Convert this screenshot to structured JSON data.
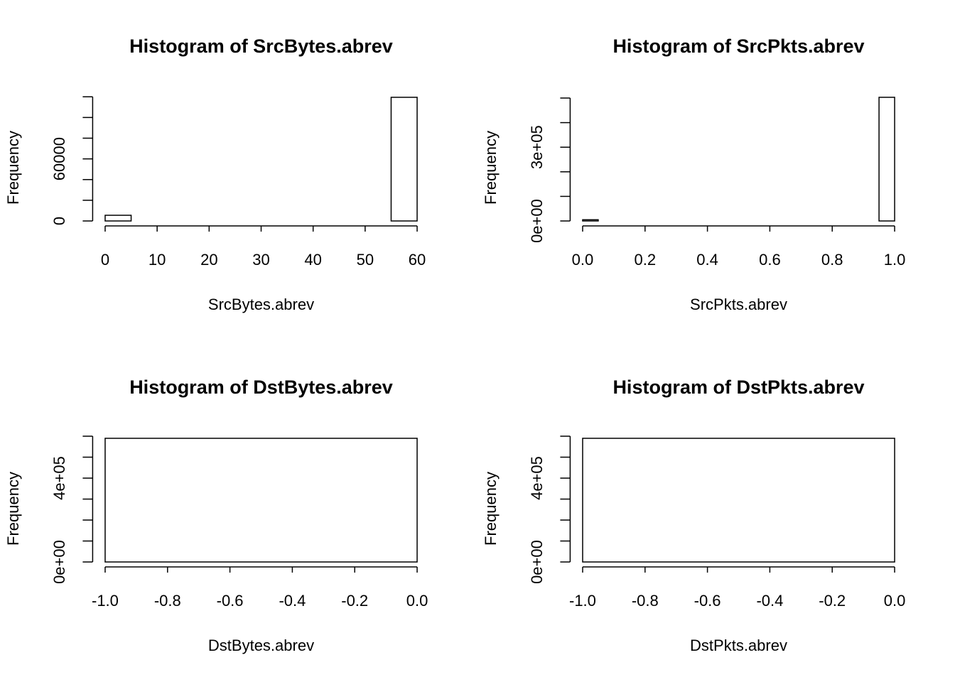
{
  "chart_data": [
    {
      "type": "histogram",
      "title": "Histogram of SrcBytes.abrev",
      "x_label": "SrcBytes.abrev",
      "y_label": "Frequency",
      "bins": [
        0,
        5,
        10,
        15,
        20,
        25,
        30,
        35,
        40,
        45,
        50,
        55,
        60
      ],
      "counts": [
        5500,
        0,
        0,
        0,
        0,
        0,
        0,
        0,
        0,
        0,
        0,
        119500
      ],
      "xlim": [
        -2.4,
        62.4
      ],
      "xticks": [
        0,
        10,
        20,
        30,
        40,
        50,
        60
      ],
      "ylim": [
        -4780,
        124280
      ],
      "yticks": [
        0,
        {
          "value": 20000,
          "label": null
        },
        {
          "value": 40000,
          "label": null
        },
        60000,
        {
          "value": 80000,
          "label": null
        },
        {
          "value": 100000,
          "label": null
        },
        {
          "value": 120000,
          "label": null
        }
      ],
      "color": "#ffffff",
      "edge_color": "#000000"
    },
    {
      "type": "histogram",
      "title": "Histogram of SrcPkts.abrev",
      "x_label": "SrcPkts.abrev",
      "y_label": "Frequency",
      "bins": [
        0,
        0.05,
        0.1,
        0.15,
        0.2,
        0.25,
        0.3,
        0.35,
        0.4,
        0.45,
        0.5,
        0.55,
        0.6,
        0.65,
        0.7,
        0.75,
        0.8,
        0.85,
        0.9,
        0.95,
        1
      ],
      "counts": [
        5000,
        0,
        0,
        0,
        0,
        0,
        0,
        0,
        0,
        0,
        0,
        0,
        0,
        0,
        0,
        0,
        0,
        0,
        0,
        503000
      ],
      "xlim": [
        -0.04,
        1.04
      ],
      "xticks": [
        {
          "value": 0,
          "label": "0.0"
        },
        0.2,
        0.4,
        0.6,
        0.8,
        {
          "value": 1,
          "label": "1.0"
        }
      ],
      "ylim": [
        -20120,
        523120
      ],
      "yticks": [
        {
          "value": 0,
          "label": "0e+00"
        },
        {
          "value": 100000,
          "label": null
        },
        {
          "value": 200000,
          "label": null
        },
        {
          "value": 300000,
          "label": "3e+05"
        },
        {
          "value": 400000,
          "label": null
        },
        {
          "value": 500000,
          "label": null
        }
      ],
      "color": "#ffffff",
      "edge_color": "#000000"
    },
    {
      "type": "histogram",
      "title": "Histogram of DstBytes.abrev",
      "x_label": "DstBytes.abrev",
      "y_label": "Frequency",
      "bins": [
        -1,
        0
      ],
      "counts": [
        590000
      ],
      "xlim": [
        -1.04,
        0.04
      ],
      "xticks": [
        {
          "value": -1,
          "label": "-1.0"
        },
        -0.8,
        -0.6,
        -0.4,
        -0.2,
        {
          "value": 0,
          "label": "0.0"
        }
      ],
      "ylim": [
        -23600,
        613600
      ],
      "yticks": [
        {
          "value": 0,
          "label": "0e+00"
        },
        {
          "value": 100000,
          "label": null
        },
        {
          "value": 200000,
          "label": null
        },
        {
          "value": 300000,
          "label": null
        },
        {
          "value": 400000,
          "label": "4e+05"
        },
        {
          "value": 500000,
          "label": null
        },
        {
          "value": 600000,
          "label": null
        }
      ],
      "color": "#ffffff",
      "edge_color": "#000000"
    },
    {
      "type": "histogram",
      "title": "Histogram of DstPkts.abrev",
      "x_label": "DstPkts.abrev",
      "y_label": "Frequency",
      "bins": [
        -1,
        0
      ],
      "counts": [
        590000
      ],
      "xlim": [
        -1.04,
        0.04
      ],
      "xticks": [
        {
          "value": -1,
          "label": "-1.0"
        },
        -0.8,
        -0.6,
        -0.4,
        -0.2,
        {
          "value": 0,
          "label": "0.0"
        }
      ],
      "ylim": [
        -23600,
        613600
      ],
      "yticks": [
        {
          "value": 0,
          "label": "0e+00"
        },
        {
          "value": 100000,
          "label": null
        },
        {
          "value": 200000,
          "label": null
        },
        {
          "value": 300000,
          "label": null
        },
        {
          "value": 400000,
          "label": "4e+05"
        },
        {
          "value": 500000,
          "label": null
        },
        {
          "value": 600000,
          "label": null
        }
      ],
      "color": "#ffffff",
      "edge_color": "#000000"
    }
  ]
}
